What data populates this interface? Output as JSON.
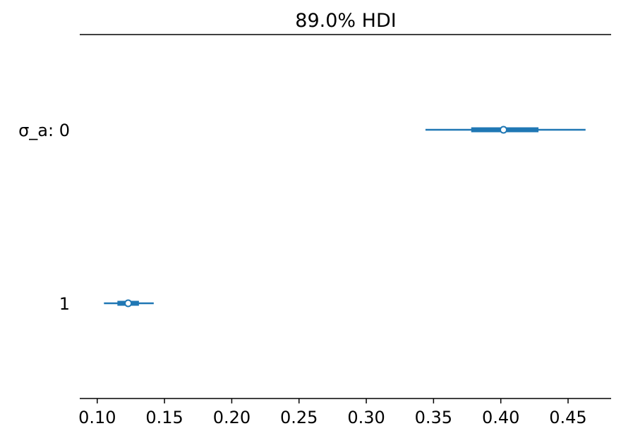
{
  "chart_data": {
    "type": "forest",
    "title": "89.0% HDI",
    "xlim": [
      0.087,
      0.482
    ],
    "xticks": [
      0.1,
      0.15,
      0.2,
      0.25,
      0.3,
      0.35,
      0.4,
      0.45
    ],
    "xtick_labels": [
      "0.10",
      "0.15",
      "0.20",
      "0.25",
      "0.30",
      "0.35",
      "0.40",
      "0.45"
    ],
    "grid": false,
    "color": "#1f77b4",
    "rows": [
      {
        "label": "σ_a: 0",
        "hdi_low": 0.344,
        "hdi_high": 0.463,
        "iqr_low": 0.378,
        "iqr_high": 0.428,
        "point": 0.402
      },
      {
        "label": "1",
        "hdi_low": 0.105,
        "hdi_high": 0.142,
        "iqr_low": 0.115,
        "iqr_high": 0.131,
        "point": 0.123
      }
    ]
  }
}
